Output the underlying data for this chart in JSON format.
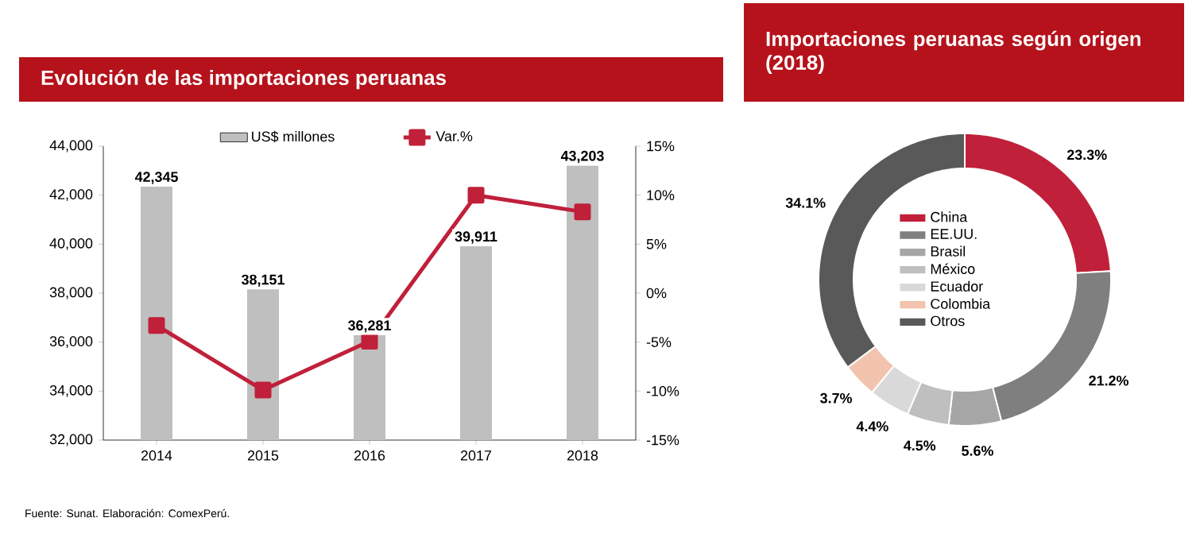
{
  "chart_data": [
    {
      "type": "bar",
      "title": "Evolución de las importaciones peruanas",
      "categories": [
        "2014",
        "2015",
        "2016",
        "2017",
        "2018"
      ],
      "series": [
        {
          "name": "US$ millones",
          "type": "bar",
          "color": "#bfbfbf",
          "values": [
            42345,
            38151,
            36281,
            39911,
            43203
          ],
          "value_labels": [
            "42,345",
            "38,151",
            "36,281",
            "39,911",
            "43,203"
          ]
        },
        {
          "name": "Var.%",
          "type": "line",
          "axis": "y2",
          "color": "#c0203a",
          "marker": "square",
          "values": [
            -3.3,
            -9.9,
            -4.9,
            10.0,
            8.3
          ]
        }
      ],
      "ylim": [
        32000,
        44000
      ],
      "yticks": [
        {
          "value": 32000,
          "label": "32,000"
        },
        {
          "value": 34000,
          "label": "34,000"
        },
        {
          "value": 36000,
          "label": "36,000"
        },
        {
          "value": 38000,
          "label": "38,000"
        },
        {
          "value": 40000,
          "label": "40,000"
        },
        {
          "value": 42000,
          "label": "42,000"
        },
        {
          "value": 44000,
          "label": "44,000"
        }
      ],
      "y2lim": [
        -15,
        15
      ],
      "y2ticks": [
        {
          "value": -15,
          "label": "-15%"
        },
        {
          "value": -10,
          "label": "-10%"
        },
        {
          "value": -5,
          "label": "-5%"
        },
        {
          "value": 0,
          "label": "0%"
        },
        {
          "value": 5,
          "label": "5%"
        },
        {
          "value": 10,
          "label": "10%"
        },
        {
          "value": 15,
          "label": "15%"
        }
      ],
      "legend": "top",
      "grid": false,
      "annotations": [
        "Fuente: Sunat. Elaboración: ComexPerú."
      ]
    },
    {
      "type": "donut",
      "title": "Importaciones peruanas según origen (2018)",
      "categories": [
        "China",
        "EE.UU.",
        "Brasil",
        "México",
        "Ecuador",
        "Colombia",
        "Otros"
      ],
      "values": [
        23.3,
        21.2,
        5.6,
        4.5,
        4.4,
        3.7,
        34.1
      ],
      "value_labels": [
        "23.3%",
        "21.2%",
        "5.6%",
        "4.5%",
        "4.4%",
        "3.7%",
        "34.1%"
      ],
      "colors": [
        "#c0203a",
        "#7f7f7f",
        "#a6a6a6",
        "#bfbfbf",
        "#d9d9d9",
        "#f2c4ad",
        "#595959"
      ],
      "legend": "center"
    }
  ]
}
